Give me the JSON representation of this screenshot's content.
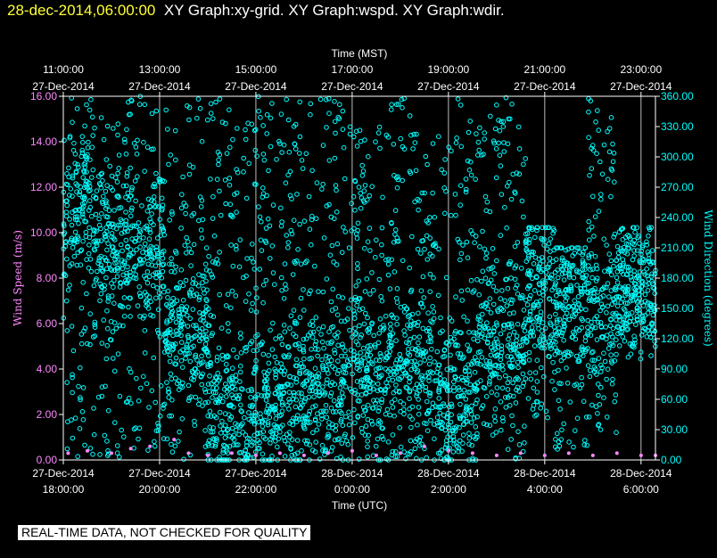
{
  "header": {
    "timestamp": "28-dec-2014,06:00:00",
    "graphs": "XY Graph:xy-grid.  XY Graph:wspd.  XY Graph:wdir."
  },
  "footer": {
    "notice": "REAL-TIME DATA, NOT CHECKED FOR QUALITY"
  },
  "colors": {
    "background": "#000000",
    "axis": "#ffffff",
    "timestamp": "#ffff33",
    "wind_speed": "#ff88ff",
    "wind_direction": "#00ffff",
    "left_axis_label": "#ff88ff",
    "right_axis_label": "#00ffff"
  },
  "chart_data": {
    "type": "scatter",
    "top_axis": {
      "label": "Time (MST)",
      "ticks": [
        {
          "time": "11:00:00",
          "date": "27-Dec-2014"
        },
        {
          "time": "13:00:00",
          "date": "27-Dec-2014"
        },
        {
          "time": "15:00:00",
          "date": "27-Dec-2014"
        },
        {
          "time": "17:00:00",
          "date": "27-Dec-2014"
        },
        {
          "time": "19:00:00",
          "date": "27-Dec-2014"
        },
        {
          "time": "21:00:00",
          "date": "27-Dec-2014"
        },
        {
          "time": "23:00:00",
          "date": "27-Dec-2014"
        }
      ]
    },
    "bottom_axis": {
      "label": "Time (UTC)",
      "range_hours": [
        18,
        30.3
      ],
      "ticks": [
        {
          "date": "27-Dec-2014",
          "time": "18:00:00"
        },
        {
          "date": "27-Dec-2014",
          "time": "20:00:00"
        },
        {
          "date": "27-Dec-2014",
          "time": "22:00:00"
        },
        {
          "date": "28-Dec-2014",
          "time": "0:00:00"
        },
        {
          "date": "28-Dec-2014",
          "time": "2:00:00"
        },
        {
          "date": "28-Dec-2014",
          "time": "4:00:00"
        },
        {
          "date": "28-Dec-2014",
          "time": "6:00:00"
        }
      ]
    },
    "left_axis": {
      "label": "Wind Speed (m/s)",
      "ylim": [
        0,
        16
      ],
      "ticks": [
        "0.00",
        "2.00",
        "4.00",
        "6.00",
        "8.00",
        "10.00",
        "12.00",
        "14.00",
        "16.00"
      ]
    },
    "right_axis": {
      "label": "Wind Direction (degrees)",
      "ylim": [
        0,
        360
      ],
      "ticks": [
        "0.00",
        "30.00",
        "60.00",
        "90.00",
        "120.00",
        "150.00",
        "180.00",
        "210.00",
        "240.00",
        "270.00",
        "300.00",
        "330.00",
        "360.00"
      ]
    },
    "grid": "vertical lines at each 2-hour tick",
    "series": [
      {
        "key": "wind_speed",
        "axis": "left",
        "points": [
          [
            18.1,
            0.3
          ],
          [
            18.5,
            0.4
          ],
          [
            19.0,
            0.3
          ],
          [
            19.4,
            0.5
          ],
          [
            19.8,
            0.6
          ],
          [
            20.3,
            0.9
          ],
          [
            20.6,
            0.3
          ],
          [
            21.0,
            0.2
          ],
          [
            21.5,
            0.3
          ],
          [
            22.0,
            0.2
          ],
          [
            22.5,
            0.3
          ],
          [
            23.0,
            0.2
          ],
          [
            23.5,
            0.3
          ],
          [
            24.0,
            0.4
          ],
          [
            24.5,
            0.2
          ],
          [
            25.0,
            0.3
          ],
          [
            25.5,
            0.6
          ],
          [
            26.0,
            0.4
          ],
          [
            26.5,
            0.3
          ],
          [
            27.0,
            0.2
          ],
          [
            27.5,
            0.3
          ],
          [
            28.0,
            0.2
          ],
          [
            28.5,
            0.3
          ],
          [
            29.0,
            0.2
          ],
          [
            29.5,
            0.3
          ],
          [
            30.0,
            0.2
          ],
          [
            30.3,
            0.2
          ]
        ]
      },
      {
        "key": "wind_direction",
        "axis": "right",
        "segments": [
          {
            "x": [
              18.0,
              18.6
            ],
            "low": 0,
            "high": 360,
            "center": 250
          },
          {
            "x": [
              18.6,
              19.3
            ],
            "low": 0,
            "high": 350,
            "center": 210
          },
          {
            "x": [
              19.3,
              20.1
            ],
            "low": 0,
            "high": 360,
            "center": 200
          },
          {
            "x": [
              20.1,
              21.0
            ],
            "low": 0,
            "high": 360,
            "center": 120
          },
          {
            "x": [
              21.0,
              22.5
            ],
            "low": 0,
            "high": 360,
            "center": 50
          },
          {
            "x": [
              22.5,
              23.9
            ],
            "low": 0,
            "high": 360,
            "center": 70
          },
          {
            "x": [
              23.9,
              24.8
            ],
            "low": 0,
            "high": 330,
            "center": 80
          },
          {
            "x": [
              24.8,
              25.7
            ],
            "low": 0,
            "high": 360,
            "center": 90
          },
          {
            "x": [
              25.7,
              26.6
            ],
            "low": 0,
            "high": 360,
            "center": 60
          },
          {
            "x": [
              26.6,
              27.6
            ],
            "low": 0,
            "high": 360,
            "center": 120
          },
          {
            "x": [
              27.6,
              28.2
            ],
            "low": 40,
            "high": 230,
            "center": 170
          },
          {
            "x": [
              28.2,
              28.9
            ],
            "low": 10,
            "high": 210,
            "center": 165
          },
          {
            "x": [
              28.9,
              29.5
            ],
            "low": 20,
            "high": 360,
            "center": 150
          },
          {
            "x": [
              29.5,
              30.3
            ],
            "low": 100,
            "high": 230,
            "center": 170
          }
        ]
      }
    ]
  }
}
